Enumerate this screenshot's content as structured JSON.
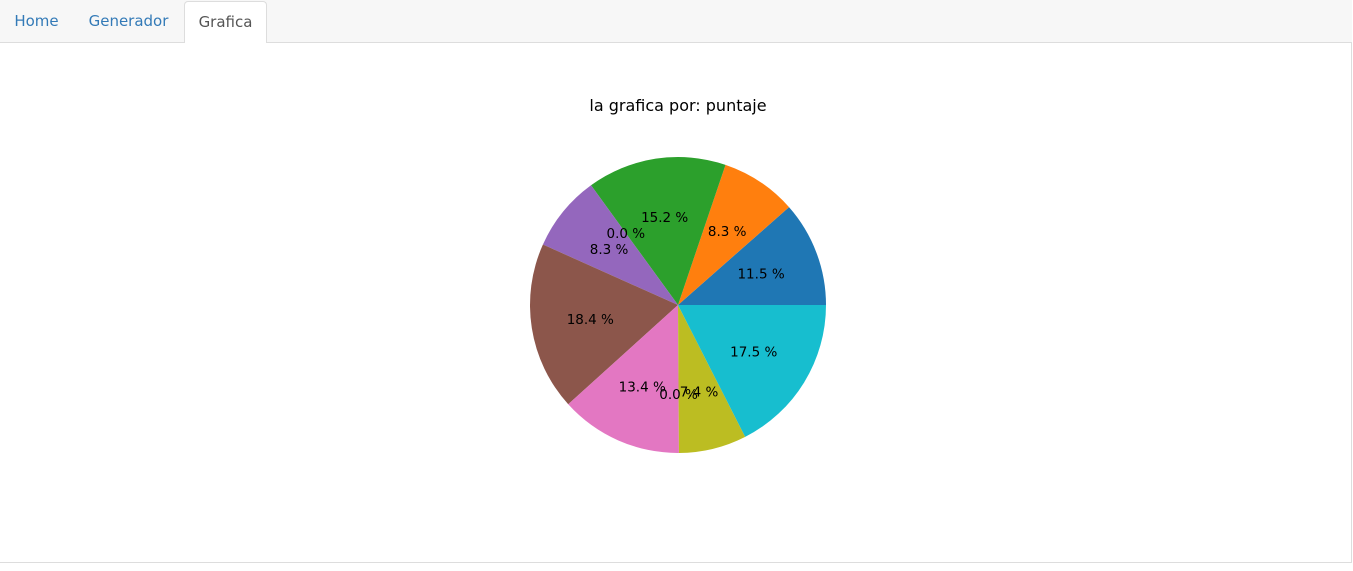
{
  "tabs": [
    {
      "label": "Home",
      "active": false
    },
    {
      "label": "Generador",
      "active": false
    },
    {
      "label": "Grafica",
      "active": true
    }
  ],
  "chart_data": {
    "type": "pie",
    "title": "la grafica por: puntaje",
    "start_angle_deg": 0,
    "direction": "counterclockwise",
    "slices": [
      {
        "value": 11.5,
        "label": "11.5 %",
        "color": "#1f77b4"
      },
      {
        "value": 8.3,
        "label": "8.3 %",
        "color": "#ff7f0e"
      },
      {
        "value": 15.2,
        "label": "15.2 %",
        "color": "#2ca02c"
      },
      {
        "value": 0.0,
        "label": "0.0 %",
        "color": "#d62728"
      },
      {
        "value": 8.3,
        "label": "8.3 %",
        "color": "#9467bd"
      },
      {
        "value": 18.4,
        "label": "18.4 %",
        "color": "#8c564b"
      },
      {
        "value": 13.4,
        "label": "13.4 %",
        "color": "#e377c2"
      },
      {
        "value": 0.0,
        "label": "0.0 %",
        "color": "#7f7f7f"
      },
      {
        "value": 7.4,
        "label": "7.4 %",
        "color": "#bcbd22"
      },
      {
        "value": 17.5,
        "label": "17.5 %",
        "color": "#17becf"
      }
    ]
  }
}
